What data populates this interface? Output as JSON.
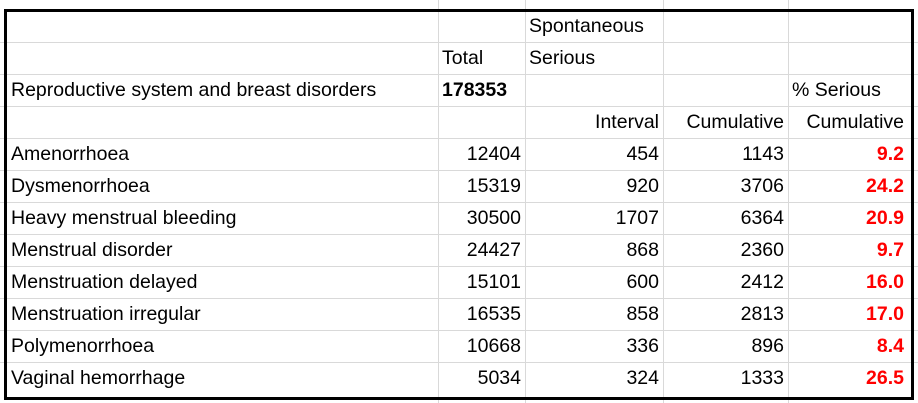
{
  "header": {
    "spontaneous_label": "Spontaneous",
    "serious_label": "Serious",
    "total_label": "Total",
    "section_label": "Reproductive system and breast disorders",
    "section_total": "178353",
    "pct_serious_label": "% Serious",
    "interval_label": "Interval",
    "cumulative_label": "Cumulative",
    "pct_cumulative_label": "Cumulative"
  },
  "rows": [
    {
      "name": "Amenorrhoea",
      "total": "12404",
      "interval": "454",
      "cumulative": "1143",
      "pct": "9.2"
    },
    {
      "name": "Dysmenorrhoea",
      "total": "15319",
      "interval": "920",
      "cumulative": "3706",
      "pct": "24.2"
    },
    {
      "name": "Heavy menstrual bleeding",
      "total": "30500",
      "interval": "1707",
      "cumulative": "6364",
      "pct": "20.9"
    },
    {
      "name": "Menstrual disorder",
      "total": "24427",
      "interval": "868",
      "cumulative": "2360",
      "pct": "9.7"
    },
    {
      "name": "Menstruation delayed",
      "total": "15101",
      "interval": "600",
      "cumulative": "2412",
      "pct": "16.0"
    },
    {
      "name": "Menstruation irregular",
      "total": "16535",
      "interval": "858",
      "cumulative": "2813",
      "pct": "17.0"
    },
    {
      "name": "Polymenorrhoea",
      "total": "10668",
      "interval": "336",
      "cumulative": "896",
      "pct": "8.4"
    },
    {
      "name": "Vaginal hemorrhage",
      "total": "5034",
      "interval": "324",
      "cumulative": "1333",
      "pct": "26.5"
    }
  ],
  "colors": {
    "highlight": "#ff0000",
    "gridline": "#d9d9d9",
    "border": "#000000"
  }
}
